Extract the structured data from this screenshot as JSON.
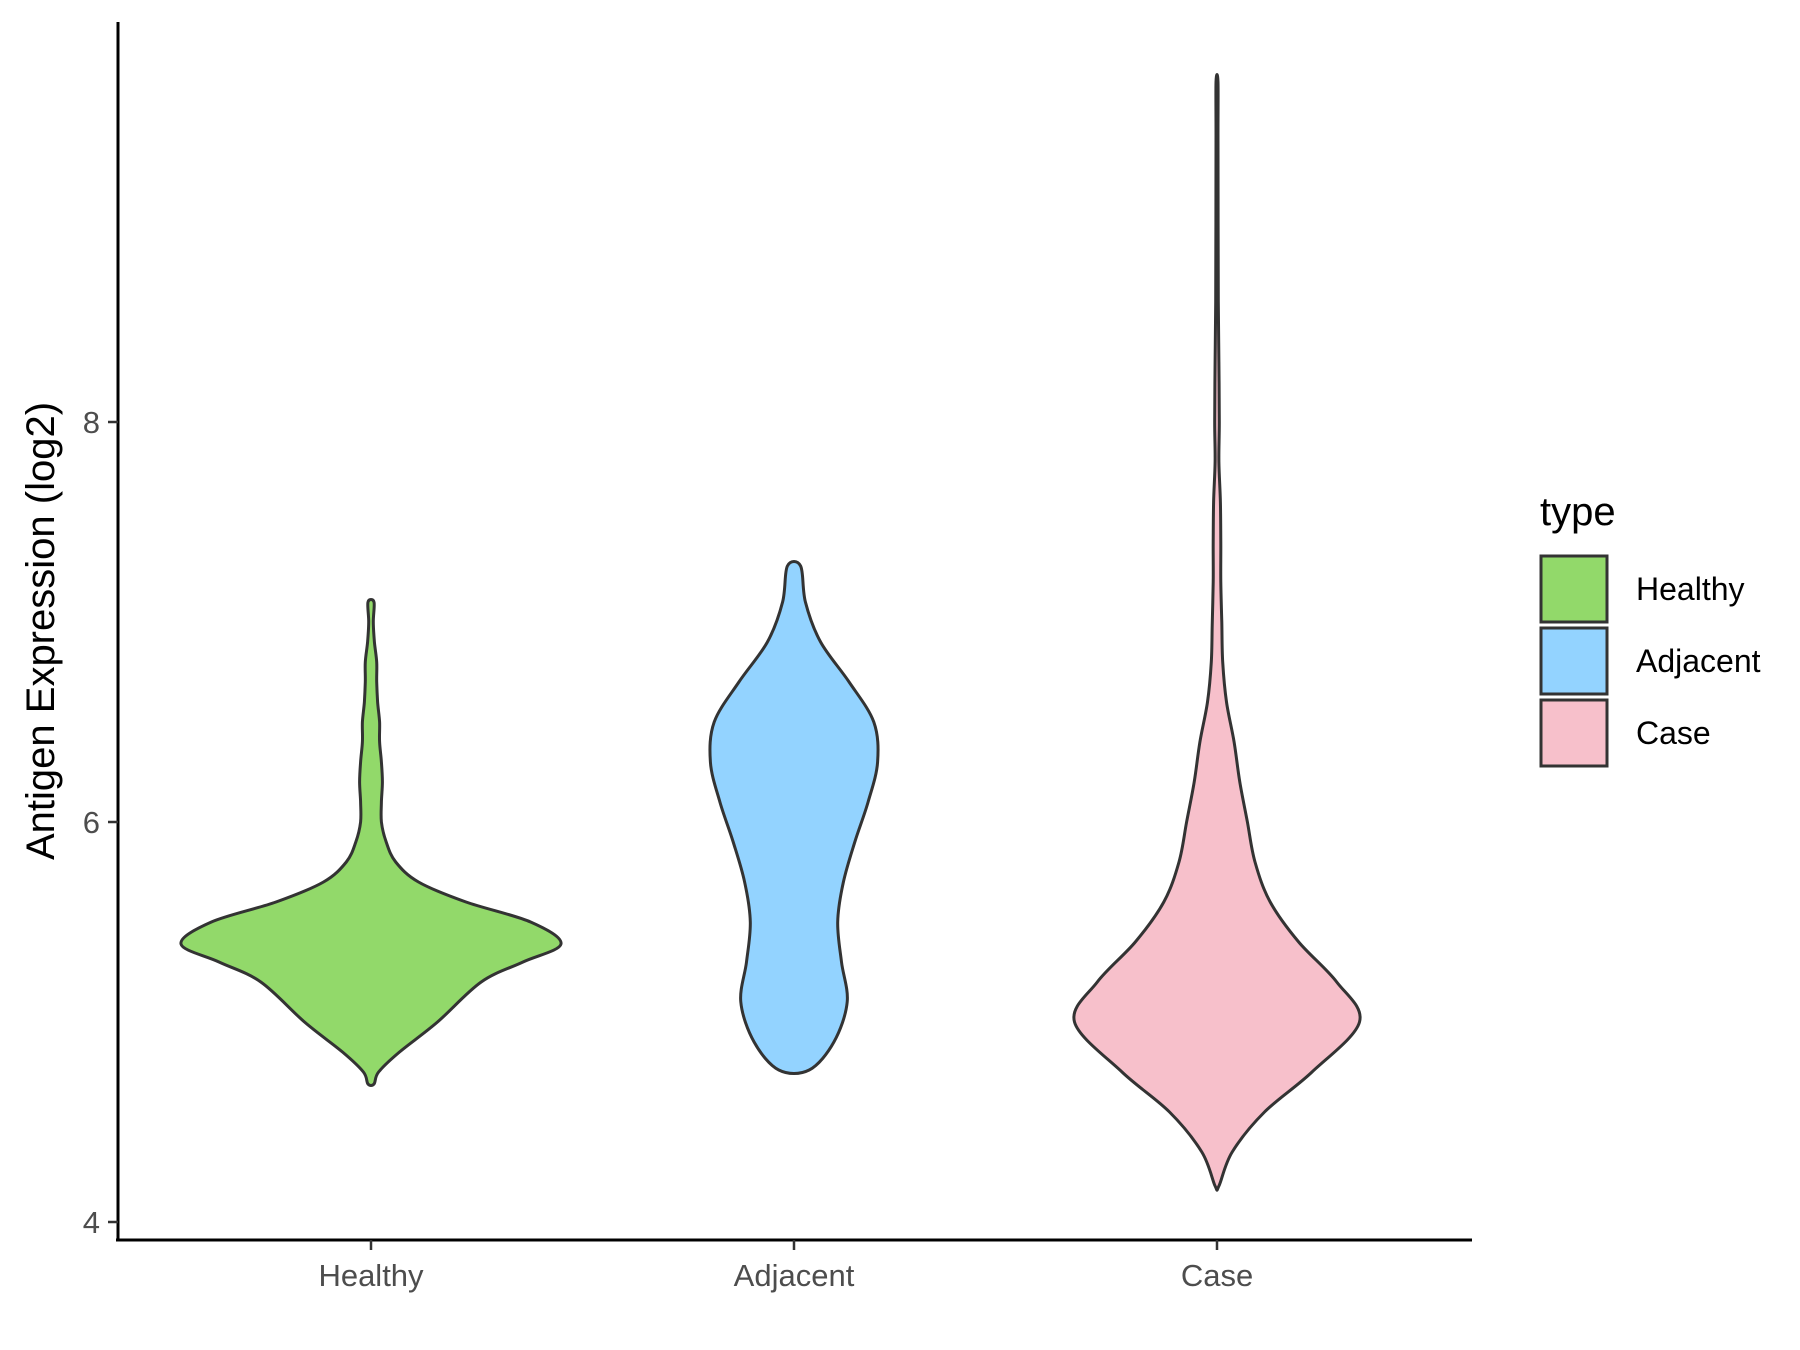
{
  "chart_data": {
    "type": "violin",
    "title": "",
    "xlabel": "",
    "ylabel": "Antigen Expression (log2)",
    "ylim": [
      3.9,
      10.0
    ],
    "yticks": [
      4,
      6,
      8
    ],
    "categories": [
      "Healthy",
      "Adjacent",
      "Case"
    ],
    "colors": {
      "Healthy": "#92D96A",
      "Adjacent": "#93D3FF",
      "Case": "#F7C0CB"
    },
    "series": [
      {
        "name": "Healthy",
        "y": [
          4.69,
          4.75,
          4.85,
          5.0,
          5.2,
          5.3,
          5.39,
          5.5,
          5.6,
          5.7,
          5.8,
          5.9,
          6.0,
          6.1,
          6.2,
          6.3,
          6.4,
          6.5,
          6.6,
          6.7,
          6.8,
          6.9,
          7.0,
          7.1
        ],
        "w": [
          0.016,
          0.04,
          0.15,
          0.35,
          0.58,
          0.8,
          1.0,
          0.84,
          0.5,
          0.25,
          0.13,
          0.08,
          0.055,
          0.055,
          0.06,
          0.055,
          0.045,
          0.045,
          0.035,
          0.03,
          0.03,
          0.018,
          0.012,
          0.016
        ]
      },
      {
        "name": "Adjacent",
        "y": [
          4.76,
          4.9,
          5.1,
          5.3,
          5.5,
          5.7,
          5.9,
          6.1,
          6.3,
          6.5,
          6.7,
          6.9,
          7.1,
          7.28
        ],
        "w": [
          0.08,
          0.21,
          0.28,
          0.25,
          0.23,
          0.26,
          0.32,
          0.39,
          0.44,
          0.42,
          0.29,
          0.14,
          0.06,
          0.035
        ]
      },
      {
        "name": "Case",
        "y": [
          4.18,
          4.35,
          4.55,
          4.75,
          5.0,
          5.2,
          5.4,
          5.6,
          5.8,
          6.0,
          6.2,
          6.4,
          6.6,
          6.8,
          7.0,
          7.2,
          7.4,
          7.6,
          7.8,
          8.0,
          8.3,
          8.6,
          9.0,
          9.4,
          9.7
        ],
        "w": [
          0.01,
          0.08,
          0.25,
          0.5,
          0.75,
          0.63,
          0.43,
          0.28,
          0.2,
          0.16,
          0.12,
          0.09,
          0.05,
          0.03,
          0.025,
          0.02,
          0.02,
          0.018,
          0.01,
          0.012,
          0.01,
          0.007,
          0.006,
          0.005,
          0.005
        ]
      }
    ],
    "legend": {
      "title": "type",
      "position": "right",
      "entries": [
        "Healthy",
        "Adjacent",
        "Case"
      ]
    }
  }
}
